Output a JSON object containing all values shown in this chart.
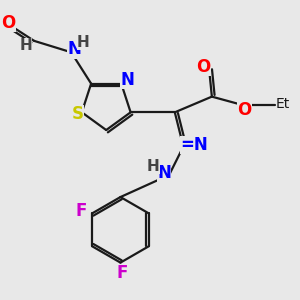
{
  "bg_color": "#e8e8e8",
  "bond_color": "#1a1a1a",
  "bond_width": 1.6,
  "atoms": {
    "S": {
      "color": "#c8c800",
      "fontsize": 12
    },
    "N": {
      "color": "#0000ff",
      "fontsize": 12
    },
    "O": {
      "color": "#ff0000",
      "fontsize": 12
    },
    "F": {
      "color": "#cc00cc",
      "fontsize": 12
    },
    "H": {
      "color": "#444444",
      "fontsize": 11
    }
  },
  "figsize": [
    3.0,
    3.0
  ],
  "dpi": 100,
  "xlim": [
    0,
    10
  ],
  "ylim": [
    0,
    10
  ]
}
